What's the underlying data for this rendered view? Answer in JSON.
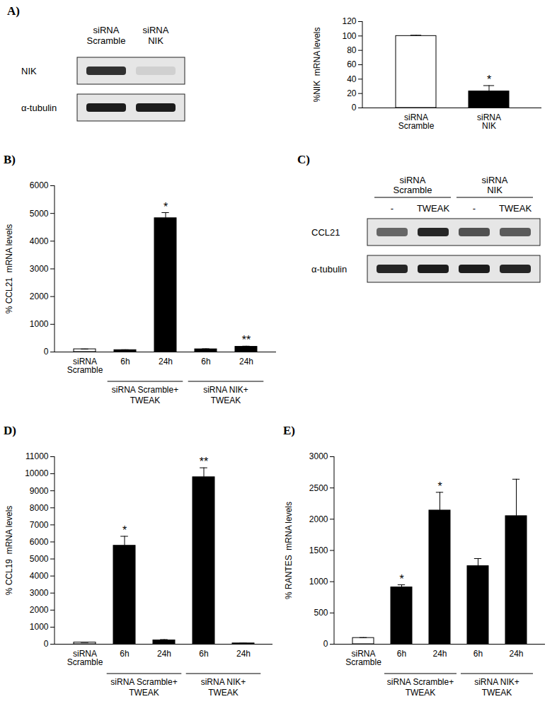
{
  "chart_data": [
    {
      "type": "bar",
      "y_label": "%NIK  mRNA levels",
      "categories": [
        "siRNA Scramble",
        "siRNA NIK"
      ],
      "values": [
        100,
        23
      ],
      "errors": [
        1,
        8
      ],
      "significance": [
        null,
        "*"
      ],
      "colors": [
        "#ffffff",
        "#000000"
      ],
      "ylim": [
        0,
        120
      ],
      "yticks": [
        0,
        20,
        40,
        60,
        80,
        100,
        120
      ],
      "grid": false
    },
    {
      "type": "bar",
      "title": "B)",
      "y_label": "% CCL21  mRNA levels",
      "categories": [
        "siRNA Scramble",
        "6h",
        "24h",
        "6h",
        "24h"
      ],
      "groups": [
        {
          "label": "siRNA Scramble+ TWEAK",
          "start": 1,
          "end": 2
        },
        {
          "label": "siRNA NIK+ TWEAK",
          "start": 3,
          "end": 4
        }
      ],
      "values": [
        100,
        70,
        4830,
        100,
        190
      ],
      "errors": [
        5,
        10,
        200,
        15,
        20
      ],
      "significance": [
        null,
        null,
        "*",
        null,
        "**"
      ],
      "colors": [
        "#ffffff",
        "#000000",
        "#000000",
        "#000000",
        "#000000"
      ],
      "ylim": [
        0,
        6000
      ],
      "yticks": [
        0,
        1000,
        2000,
        3000,
        4000,
        5000,
        6000
      ],
      "grid": false
    },
    {
      "type": "bar",
      "title": "D)",
      "y_label": "% CCL19  mRNA levels",
      "categories": [
        "siRNA Scramble",
        "6h",
        "24h",
        "6h",
        "24h"
      ],
      "groups": [
        {
          "label": "siRNA Scramble+ TWEAK",
          "start": 1,
          "end": 2
        },
        {
          "label": "siRNA NIK+ TWEAK",
          "start": 3,
          "end": 4
        }
      ],
      "values": [
        100,
        5780,
        230,
        9800,
        50
      ],
      "errors": [
        5,
        550,
        40,
        550,
        10
      ],
      "significance": [
        null,
        "*",
        null,
        "**",
        null
      ],
      "colors": [
        "#ffffff",
        "#000000",
        "#000000",
        "#000000",
        "#000000"
      ],
      "ylim": [
        0,
        11000
      ],
      "yticks": [
        0,
        1000,
        2000,
        3000,
        4000,
        5000,
        6000,
        7000,
        8000,
        9000,
        10000,
        11000
      ],
      "grid": false
    },
    {
      "type": "bar",
      "title": "E)",
      "y_label": "% RANTES  mRNA levels",
      "categories": [
        "siRNA Scramble",
        "6h",
        "24h",
        "6h",
        "24h"
      ],
      "groups": [
        {
          "label": "siRNA Scramble+ TWEAK",
          "start": 1,
          "end": 2
        },
        {
          "label": "siRNA NIK+ TWEAK",
          "start": 3,
          "end": 4
        }
      ],
      "values": [
        100,
        910,
        2140,
        1250,
        2050
      ],
      "errors": [
        5,
        40,
        290,
        120,
        590
      ],
      "significance": [
        null,
        "*",
        "*",
        null,
        null
      ],
      "colors": [
        "#ffffff",
        "#000000",
        "#000000",
        "#000000",
        "#000000"
      ],
      "ylim": [
        0,
        3000
      ],
      "yticks": [
        0,
        500,
        1000,
        1500,
        2000,
        2500,
        3000
      ],
      "grid": false
    }
  ],
  "blots": [
    {
      "panel": "A)",
      "lanes": [
        "siRNA Scramble",
        "siRNA NIK"
      ],
      "rows": [
        {
          "label": "NIK",
          "intensity": [
            0.85,
            0.1
          ]
        },
        {
          "label": "α-tubulin",
          "intensity": [
            0.95,
            0.95
          ]
        }
      ]
    },
    {
      "panel": "C)",
      "lane_groups": [
        {
          "label": "siRNA Scramble",
          "start": 0,
          "end": 1
        },
        {
          "label": "siRNA NIK",
          "start": 2,
          "end": 3
        }
      ],
      "lanes": [
        "-",
        "TWEAK",
        "-",
        "TWEAK"
      ],
      "rows": [
        {
          "label": "CCL21",
          "intensity": [
            0.6,
            0.9,
            0.7,
            0.65
          ]
        },
        {
          "label": "α-tubulin",
          "intensity": [
            0.9,
            0.95,
            0.95,
            0.9
          ]
        }
      ]
    }
  ]
}
